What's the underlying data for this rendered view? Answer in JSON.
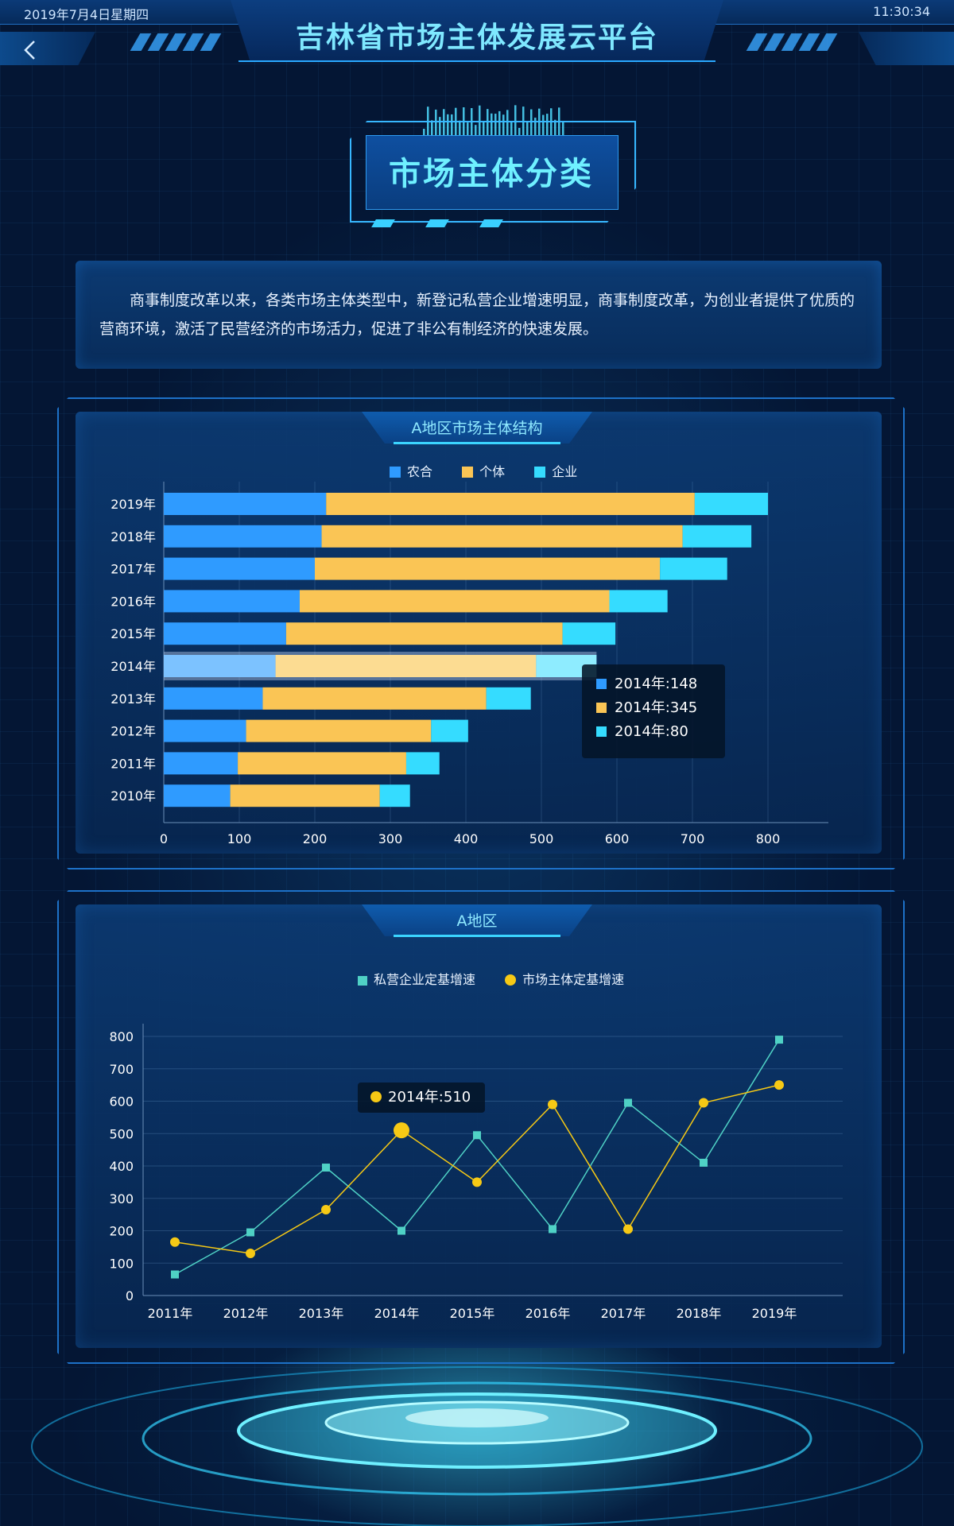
{
  "header": {
    "date": "2019年7月4日星期四",
    "time": "11:30:34",
    "title": "吉林省市场主体发展云平台"
  },
  "section": {
    "title": "市场主体分类"
  },
  "intro": {
    "text": "商事制度改革以来，各类市场主体类型中，新登记私营企业增速明显，商事制度改革，为创业者提供了优质的营商环境，激活了民营经济的市场活力，促进了非公有制经济的快速发展。"
  },
  "colors": {
    "nonghe": "#2f9bff",
    "geti": "#fac555",
    "qiye": "#35dcff",
    "private_growth": "#4fd1c5",
    "market_growth": "#f6c915"
  },
  "chart_data": [
    {
      "type": "bar",
      "orientation": "horizontal",
      "stacked": true,
      "title": "A地区市场主体结构",
      "categories": [
        "2019年",
        "2018年",
        "2017年",
        "2016年",
        "2015年",
        "2014年",
        "2013年",
        "2012年",
        "2011年",
        "2010年"
      ],
      "series": [
        {
          "name": "农合",
          "values": [
            215,
            209,
            200,
            180,
            162,
            148,
            131,
            109,
            98,
            88
          ]
        },
        {
          "name": "个体",
          "values": [
            488,
            478,
            457,
            410,
            366,
            345,
            296,
            245,
            223,
            198
          ]
        },
        {
          "name": "企业",
          "values": [
            97,
            91,
            89,
            77,
            70,
            80,
            59,
            49,
            44,
            40
          ]
        }
      ],
      "xlim": [
        0,
        880
      ],
      "xticks": [
        0,
        100,
        200,
        300,
        400,
        500,
        600,
        700,
        800
      ],
      "highlight": "2014年",
      "tooltip": [
        "2014年:148",
        "2014年:345",
        "2014年:80"
      ],
      "legend": "top"
    },
    {
      "type": "line",
      "title": "A地区",
      "categories": [
        "2011年",
        "2012年",
        "2013年",
        "2014年",
        "2015年",
        "2016年",
        "2017年",
        "2018年",
        "2019年"
      ],
      "series": [
        {
          "name": "私营企业定基增速",
          "marker": "square",
          "values": [
            65,
            195,
            395,
            200,
            495,
            205,
            595,
            410,
            790
          ]
        },
        {
          "name": "市场主体定基增速",
          "marker": "circle",
          "values": [
            165,
            130,
            265,
            510,
            350,
            590,
            205,
            595,
            650
          ]
        }
      ],
      "ylim": [
        0,
        800
      ],
      "yticks": [
        0,
        100,
        200,
        300,
        400,
        500,
        600,
        700,
        800
      ],
      "highlight": "2014年",
      "tooltip": "2014年:510",
      "legend": "top"
    }
  ]
}
